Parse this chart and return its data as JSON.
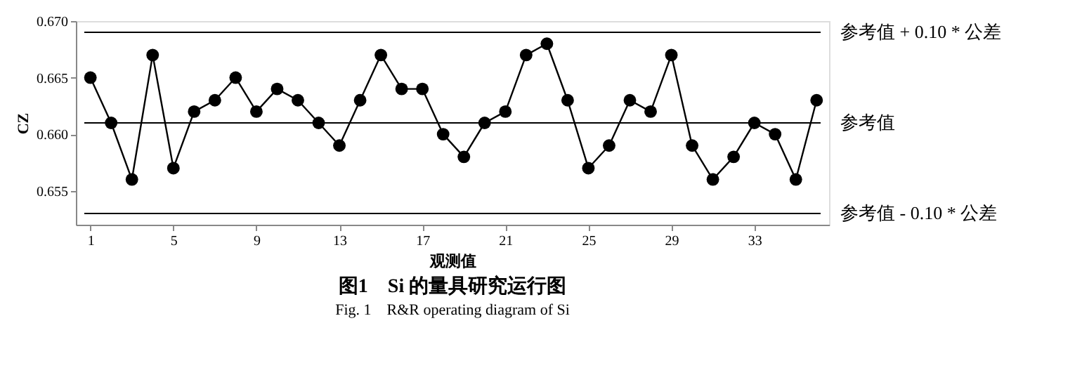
{
  "chart_data": {
    "type": "line",
    "title": "图1　Si 的量具研究运行图",
    "subtitle": "Fig. 1　R&R operating diagram of Si",
    "xlabel": "观测值",
    "ylabel": "CZ",
    "x": [
      1,
      2,
      3,
      4,
      5,
      6,
      7,
      8,
      9,
      10,
      11,
      12,
      13,
      14,
      15,
      16,
      17,
      18,
      19,
      20,
      21,
      22,
      23,
      24,
      25,
      26,
      27,
      28,
      29,
      30,
      31,
      32,
      33,
      34,
      35,
      36
    ],
    "series": [
      {
        "color": "#000000",
        "values": [
          0.665,
          0.661,
          0.656,
          0.667,
          0.657,
          0.662,
          0.663,
          0.665,
          0.662,
          0.664,
          0.663,
          0.661,
          0.659,
          0.663,
          0.667,
          0.664,
          0.664,
          0.66,
          0.658,
          0.661,
          0.662,
          0.667,
          0.668,
          0.663,
          0.657,
          0.659,
          0.663,
          0.662,
          0.667,
          0.659,
          0.656,
          0.658,
          0.661,
          0.66,
          0.656,
          0.663
        ]
      }
    ],
    "xlim": [
      0.3,
      36.6
    ],
    "xticks": [
      1,
      5,
      9,
      13,
      17,
      21,
      25,
      29,
      33
    ],
    "ylim": [
      0.652,
      0.67
    ],
    "yticks": [
      0.655,
      {
        "value": 0.66,
        "label": "0.660"
      },
      0.665,
      {
        "value": 0.67,
        "label": "0.670"
      }
    ],
    "ref_lines": [
      {
        "axis": "y",
        "value": 0.669,
        "label": "参考值 + 0.10 * 公差",
        "color": "#000000"
      },
      {
        "axis": "y",
        "value": 0.661,
        "label": "参考值",
        "color": "#000000"
      },
      {
        "axis": "y",
        "value": 0.653,
        "label": "参考值 - 0.10 * 公差",
        "color": "#000000"
      }
    ],
    "marker": "circle",
    "line_style": "solid",
    "grid": false
  }
}
